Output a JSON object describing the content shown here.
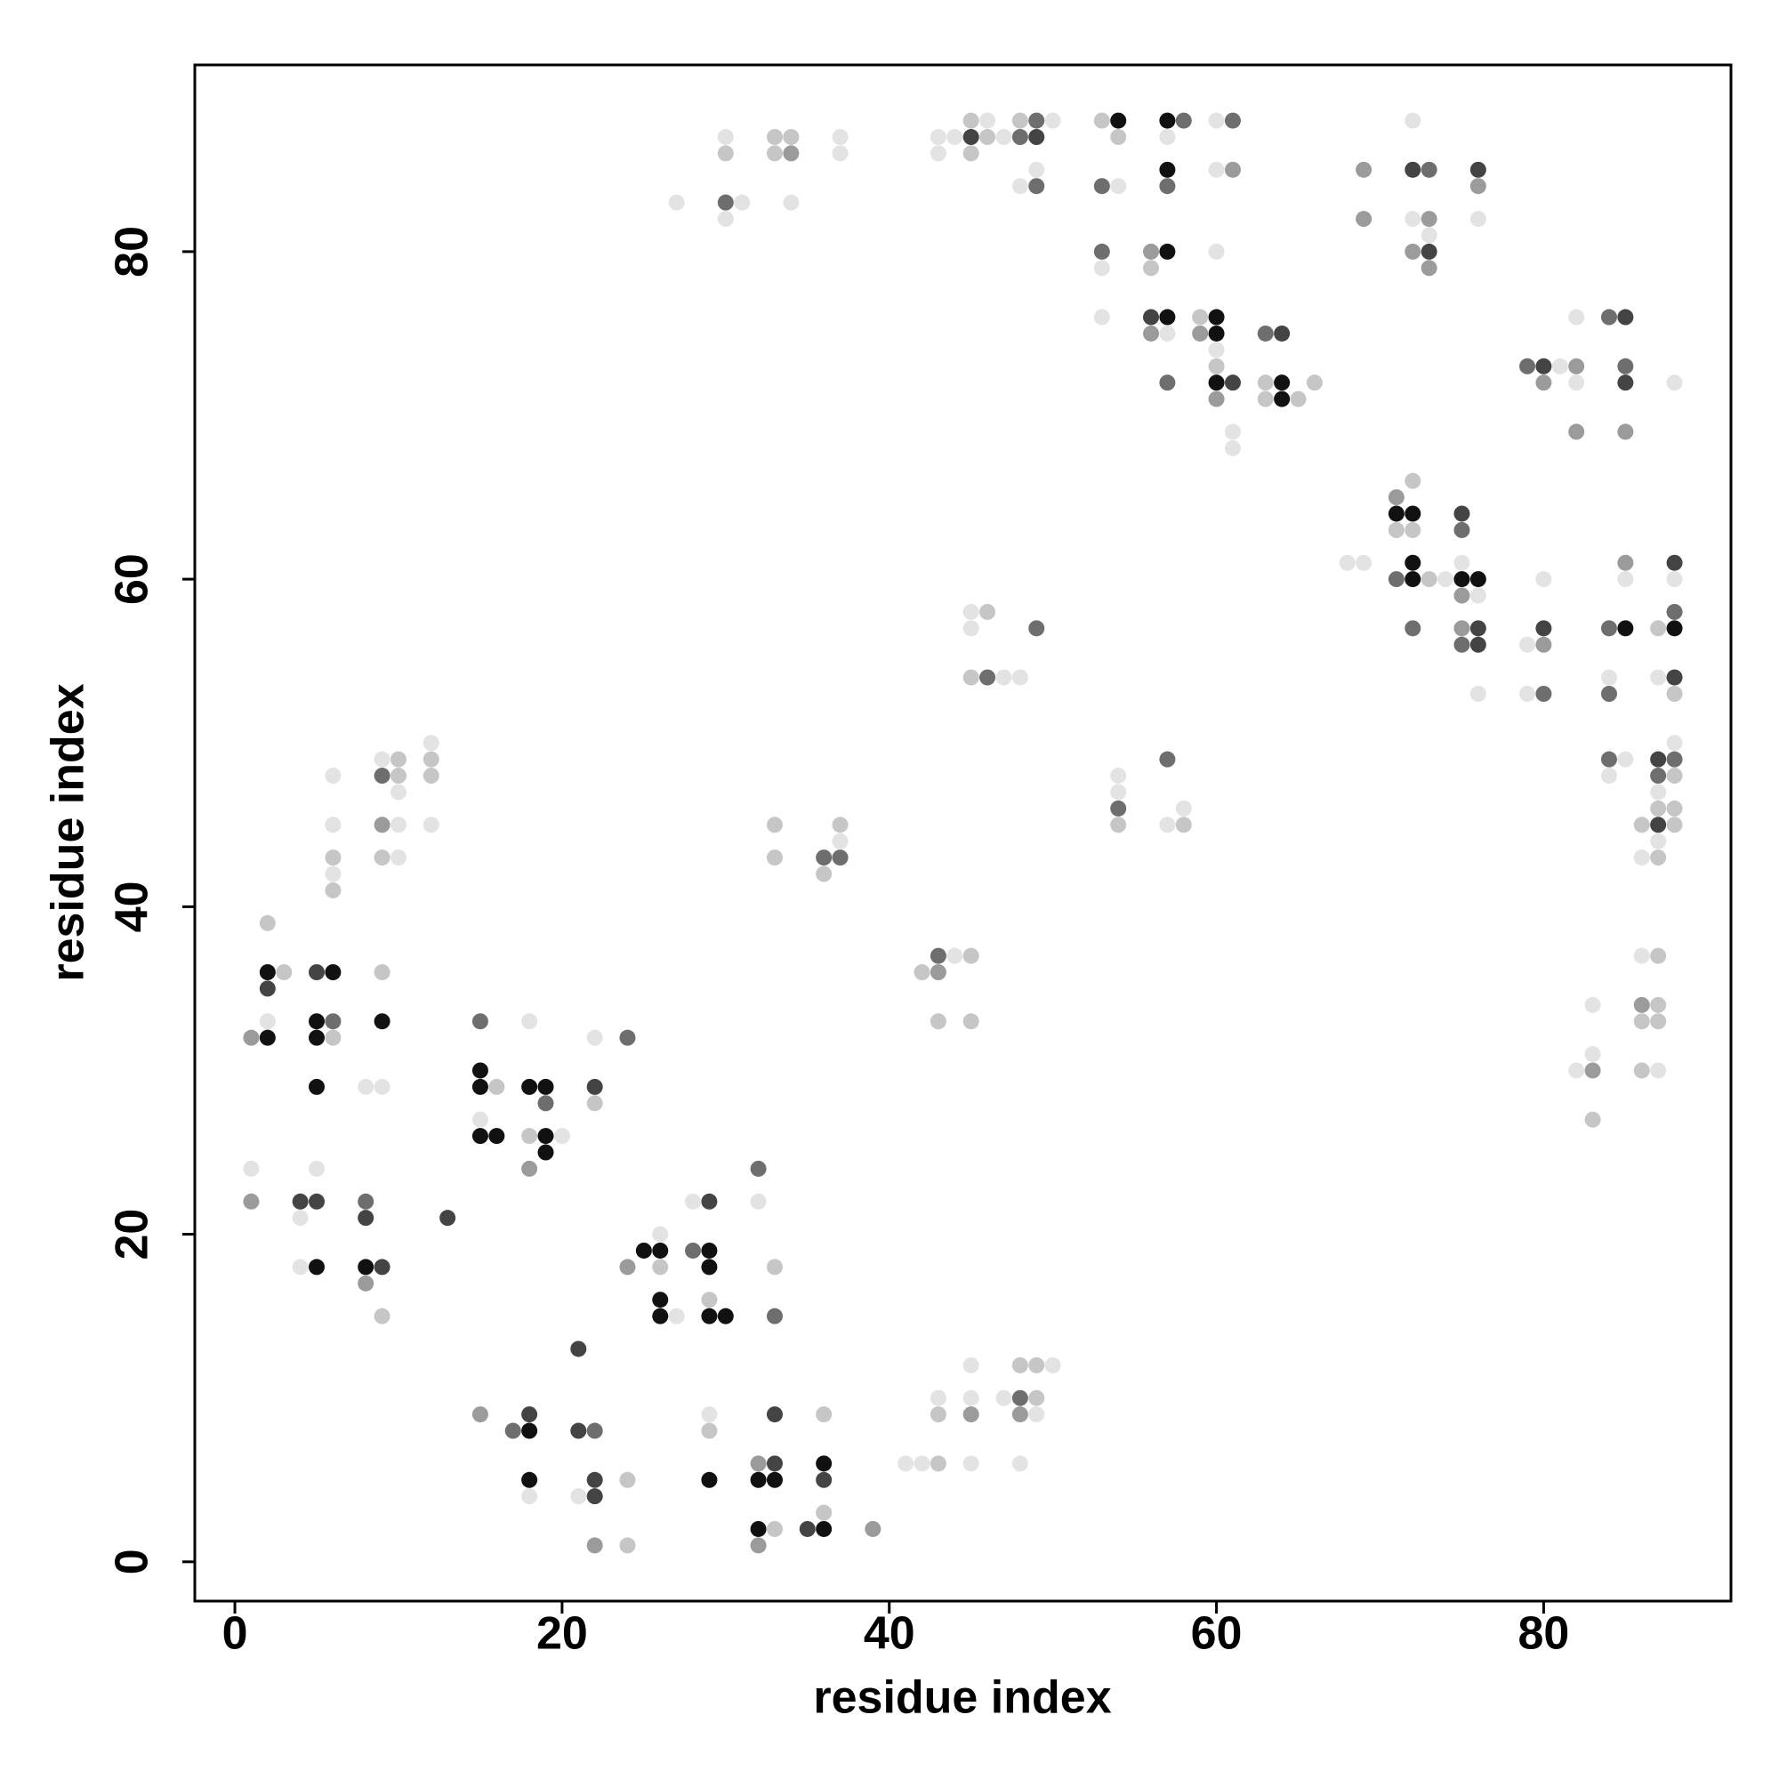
{
  "chart_data": {
    "type": "scatter",
    "xlabel": "residue index",
    "ylabel": "residue index",
    "xlim": [
      -2.45,
      91.45
    ],
    "ylim": [
      -2.4,
      91.4
    ],
    "xticks": [
      0,
      20,
      40,
      60,
      80
    ],
    "yticks": [
      0,
      20,
      40,
      60,
      80
    ],
    "grid": false,
    "x": [
      30,
      30,
      30,
      30,
      31,
      27,
      33,
      33,
      34,
      34,
      34,
      37,
      37,
      43,
      44,
      45,
      45,
      45,
      46,
      46,
      47,
      48,
      48,
      48,
      49,
      49,
      49,
      49,
      50,
      43,
      53,
      54,
      54,
      53,
      54,
      57,
      58,
      57,
      57,
      57,
      60,
      61,
      60,
      61,
      53,
      53,
      56,
      57,
      56,
      60,
      53,
      56,
      57,
      56,
      57,
      59,
      60,
      59,
      60,
      60,
      60,
      60,
      61,
      60,
      57,
      61,
      61,
      63,
      64,
      63,
      64,
      63,
      64,
      65,
      66,
      69,
      69,
      72,
      72,
      73,
      72,
      73,
      73,
      72,
      73,
      73,
      76,
      76,
      76,
      82,
      84,
      85,
      79,
      80,
      81,
      82,
      85,
      80,
      82,
      85,
      88,
      82,
      85,
      72,
      71,
      71,
      72,
      71,
      72,
      68,
      69,
      72,
      71,
      72,
      73,
      74,
      75,
      75,
      75,
      75,
      76,
      75,
      76,
      72,
      75,
      76,
      75,
      76,
      76,
      80,
      79,
      80,
      80,
      79,
      80,
      84,
      85,
      85,
      85,
      84,
      84,
      88,
      88,
      87,
      88,
      88,
      87,
      88,
      88,
      84,
      85,
      84,
      87,
      88,
      88,
      87,
      88,
      87,
      87,
      88,
      86,
      87,
      88,
      86,
      87,
      87,
      86,
      87,
      83,
      86,
      87,
      86,
      87,
      83,
      82,
      83,
      86,
      87,
      83,
      45,
      46,
      45,
      49,
      45,
      46,
      47,
      48,
      54,
      54,
      54,
      54,
      57,
      58,
      57,
      58,
      33,
      33,
      36,
      37,
      37,
      37,
      36,
      42,
      43,
      44,
      45,
      43,
      43,
      45,
      6,
      6,
      6,
      6,
      6,
      9,
      10,
      9,
      10,
      10,
      9,
      10,
      9,
      10,
      12,
      12,
      12,
      12,
      2,
      2,
      3,
      2,
      5,
      6,
      2,
      5,
      6,
      1,
      2,
      5,
      6,
      5,
      9,
      9,
      8,
      9,
      1,
      5,
      1,
      4,
      5,
      4,
      8,
      8,
      13,
      4,
      5,
      8,
      9,
      8,
      9,
      15,
      18,
      24,
      22,
      15,
      15,
      16,
      18,
      19,
      22,
      19,
      22,
      15,
      15,
      16,
      18,
      19,
      20,
      18,
      19,
      32,
      32,
      28,
      29,
      26,
      25,
      26,
      28,
      29,
      24,
      26,
      29,
      33,
      26,
      29,
      26,
      27,
      29,
      30,
      33,
      21,
      15,
      18,
      17,
      18,
      21,
      22,
      18,
      22,
      24,
      18,
      21,
      22,
      22,
      24,
      29,
      29,
      33,
      36,
      32,
      33,
      36,
      29,
      32,
      33,
      36,
      36,
      32,
      33,
      35,
      36,
      39,
      32,
      45,
      48,
      49,
      50,
      43,
      45,
      47,
      48,
      49,
      43,
      45,
      48,
      49,
      41,
      42,
      43,
      45,
      48
    ],
    "values": [
      87,
      86,
      83,
      82,
      83,
      83,
      87,
      86,
      87,
      86,
      83,
      87,
      86,
      87,
      87,
      88,
      87,
      86,
      88,
      87,
      87,
      88,
      87,
      84,
      88,
      87,
      85,
      84,
      88,
      86,
      88,
      88,
      87,
      84,
      84,
      88,
      88,
      87,
      85,
      84,
      88,
      88,
      85,
      85,
      80,
      79,
      80,
      80,
      79,
      80,
      76,
      76,
      76,
      75,
      75,
      76,
      76,
      75,
      75,
      74,
      73,
      72,
      72,
      71,
      72,
      69,
      68,
      75,
      75,
      72,
      72,
      71,
      71,
      71,
      72,
      85,
      82,
      88,
      85,
      85,
      82,
      82,
      81,
      80,
      80,
      79,
      85,
      84,
      82,
      76,
      76,
      76,
      73,
      73,
      73,
      73,
      73,
      72,
      72,
      72,
      72,
      69,
      69,
      66,
      65,
      64,
      64,
      63,
      63,
      61,
      61,
      61,
      60,
      60,
      60,
      60,
      61,
      64,
      63,
      60,
      60,
      59,
      59,
      57,
      57,
      57,
      56,
      56,
      53,
      60,
      56,
      57,
      56,
      53,
      53,
      57,
      57,
      61,
      60,
      54,
      53,
      61,
      60,
      57,
      58,
      57,
      54,
      54,
      53,
      49,
      49,
      48,
      49,
      49,
      50,
      48,
      48,
      47,
      46,
      46,
      45,
      45,
      45,
      43,
      43,
      44,
      37,
      37,
      34,
      34,
      34,
      33,
      33,
      31,
      30,
      30,
      30,
      30,
      27,
      58,
      58,
      57,
      57,
      54,
      54,
      54,
      54,
      48,
      47,
      46,
      45,
      49,
      46,
      45,
      45,
      45,
      43,
      43,
      43,
      45,
      44,
      42,
      36,
      37,
      37,
      37,
      36,
      33,
      33,
      48,
      45,
      43,
      42,
      41,
      49,
      49,
      48,
      48,
      47,
      45,
      45,
      43,
      43,
      50,
      49,
      48,
      45,
      39,
      36,
      36,
      35,
      36,
      36,
      33,
      33,
      33,
      32,
      32,
      32,
      32,
      29,
      36,
      33,
      29,
      29,
      24,
      24,
      22,
      22,
      22,
      21,
      22,
      21,
      21,
      18,
      18,
      18,
      18,
      17,
      15,
      33,
      33,
      32,
      32,
      30,
      29,
      29,
      29,
      29,
      29,
      28,
      28,
      27,
      26,
      26,
      26,
      26,
      26,
      24,
      25,
      24,
      22,
      22,
      22,
      20,
      19,
      19,
      19,
      19,
      18,
      18,
      18,
      18,
      16,
      16,
      15,
      15,
      15,
      15,
      15,
      13,
      9,
      9,
      8,
      8,
      8,
      8,
      5,
      5,
      5,
      4,
      4,
      4,
      1,
      1,
      9,
      8,
      9,
      9,
      6,
      6,
      6,
      5,
      5,
      5,
      5,
      3,
      2,
      2,
      2,
      2,
      2,
      1,
      12,
      12,
      12,
      12,
      10,
      10,
      10,
      10,
      10,
      9,
      9,
      9,
      9,
      6,
      6,
      6,
      6,
      6
    ],
    "colors": [
      "#e3e3e3",
      "#c6c6c6",
      "#6e6e6e",
      "#e3e3e3",
      "#e3e3e3",
      "#e3e3e3",
      "#c6c6c6",
      "#c6c6c6",
      "#c6c6c6",
      "#9b9b9b",
      "#e3e3e3",
      "#e3e3e3",
      "#e3e3e3",
      "#e3e3e3",
      "#e3e3e3",
      "#c6c6c6",
      "#444",
      "#c6c6c6",
      "#e3e3e3",
      "#c6c6c6",
      "#e3e3e3",
      "#c6c6c6",
      "#6e6e6e",
      "#e3e3e3",
      "#6e6e6e",
      "#444",
      "#e3e3e3",
      "#6e6e6e",
      "#e3e3e3",
      "#e3e3e3",
      "#c6c6c6",
      "#111",
      "#c6c6c6",
      "#6e6e6e",
      "#e3e3e3",
      "#111",
      "#6e6e6e",
      "#e3e3e3",
      "#111",
      "#6e6e6e",
      "#e3e3e3",
      "#6e6e6e",
      "#e3e3e3",
      "#9b9b9b",
      "#6e6e6e",
      "#e3e3e3",
      "#9b9b9b",
      "#111",
      "#c6c6c6",
      "#e3e3e3",
      "#e3e3e3",
      "#444",
      "#111",
      "#9b9b9b",
      "#e3e3e3",
      "#c6c6c6",
      "#111",
      "#9b9b9b",
      "#111",
      "#e3e3e3",
      "#c6c6c6",
      "#111",
      "#444",
      "#9b9b9b",
      "#6e6e6e",
      "#e3e3e3",
      "#e3e3e3",
      "#6e6e6e",
      "#444",
      "#c6c6c6",
      "#111",
      "#c6c6c6",
      "#111",
      "#c6c6c6",
      "#c6c6c6",
      "#9b9b9b",
      "#9b9b9b",
      "#e3e3e3",
      "#444",
      "#6e6e6e",
      "#e3e3e3",
      "#9b9b9b",
      "#e3e3e3",
      "#9b9b9b",
      "#444",
      "#9b9b9b",
      "#444",
      "#9b9b9b",
      "#e3e3e3",
      "#e3e3e3",
      "#6e6e6e",
      "#444",
      "#6e6e6e",
      "#444",
      "#e3e3e3",
      "#9b9b9b",
      "#6e6e6e",
      "#9b9b9b",
      "#e3e3e3",
      "#444",
      "#e3e3e3",
      "#9b9b9b",
      "#9b9b9b",
      "#c6c6c6",
      "#9b9b9b",
      "#111",
      "#111",
      "#c6c6c6",
      "#c6c6c6",
      "#e3e3e3",
      "#e3e3e3",
      "#111",
      "#6e6e6e",
      "#111",
      "#c6c6c6",
      "#e3e3e3",
      "#e3e3e3",
      "#444",
      "#6e6e6e",
      "#111",
      "#111",
      "#9b9b9b",
      "#e3e3e3",
      "#6e6e6e",
      "#9b9b9b",
      "#444",
      "#6e6e6e",
      "#444",
      "#e3e3e3",
      "#e3e3e3",
      "#e3e3e3",
      "#444",
      "#9b9b9b",
      "#e3e3e3",
      "#6e6e6e",
      "#6e6e6e",
      "#111",
      "#9b9b9b",
      "#e3e3e3",
      "#e3e3e3",
      "#6e6e6e",
      "#444",
      "#e3e3e3",
      "#c6c6c6",
      "#6e6e6e",
      "#111",
      "#e3e3e3",
      "#444",
      "#c6c6c6",
      "#6e6e6e",
      "#e3e3e3",
      "#e3e3e3",
      "#444",
      "#6e6e6e",
      "#e3e3e3",
      "#6e6e6e",
      "#c6c6c6",
      "#e3e3e3",
      "#c6c6c6",
      "#c6c6c6",
      "#c6c6c6",
      "#444",
      "#c6c6c6",
      "#e3e3e3",
      "#c6c6c6",
      "#e3e3e3",
      "#e3e3e3",
      "#c6c6c6",
      "#e3e3e3",
      "#9b9b9b",
      "#c6c6c6",
      "#c6c6c6",
      "#c6c6c6",
      "#e3e3e3",
      "#e3e3e3",
      "#9b9b9b",
      "#c6c6c6",
      "#e3e3e3",
      "#c6c6c6",
      "#e3e3e3",
      "#c6c6c6",
      "#e3e3e3",
      "#6e6e6e",
      "#c6c6c6",
      "#6e6e6e",
      "#e3e3e3",
      "#e3e3e3",
      "#e3e3e3",
      "#e3e3e3",
      "#6e6e6e",
      "#c6c6c6",
      "#6e6e6e",
      "#e3e3e3",
      "#e3e3e3",
      "#c6c6c6",
      "#c6c6c6",
      "#c6c6c6",
      "#6e6e6e",
      "#6e6e6e",
      "#c6c6c6",
      "#e3e3e3",
      "#c6c6c6",
      "#c6c6c6",
      "#6e6e6e",
      "#e3e3e3",
      "#c6c6c6",
      "#9b9b9b",
      "#c6c6c6",
      "#c6c6c6",
      "#e3e3e3",
      "#e3e3e3",
      "#c6c6c6",
      "#e3e3e3",
      "#c6c6c6",
      "#e3e3e3",
      "#c6c6c6",
      "#6e6e6e",
      "#c6c6c6",
      "#e3e3e3",
      "#9b9b9b",
      "#e3e3e3",
      "#c6c6c6",
      "#e3e3e3",
      "#e3e3e3",
      "#c6c6c6",
      "#c6c6c6",
      "#e3e3e3",
      "#c6c6c6",
      "#111",
      "#c6c6c6",
      "#444",
      "#444",
      "#111",
      "#e3e3e3",
      "#111",
      "#6e6e6e",
      "#9b9b9b",
      "#111",
      "#111",
      "#c6c6c6",
      "#111",
      "#c6c6c6",
      "#111",
      "#e3e3e3",
      "#e3e3e3",
      "#e3e3e3",
      "#e3e3e3",
      "#9b9b9b",
      "#444",
      "#444",
      "#e3e3e3",
      "#6e6e6e",
      "#444",
      "#444",
      "#e3e3e3",
      "#111",
      "#111",
      "#444",
      "#9b9b9b",
      "#c6c6c6",
      "#6e6e6e",
      "#e3e3e3",
      "#6e6e6e",
      "#e3e3e3",
      "#111",
      "#111",
      "#c6c6c6",
      "#111",
      "#111",
      "#444",
      "#6e6e6e",
      "#c6c6c6",
      "#e3e3e3",
      "#111",
      "#111",
      "#c6c6c6",
      "#111",
      "#e3e3e3",
      "#9b9b9b",
      "#111",
      "#6e6e6e",
      "#e3e3e3",
      "#e3e3e3",
      "#444",
      "#e3e3e3",
      "#111",
      "#111",
      "#6e6e6e",
      "#111",
      "#9b9b9b",
      "#c6c6c6",
      "#111",
      "#c6c6c6",
      "#111",
      "#c6c6c6",
      "#111",
      "#e3e3e3",
      "#111",
      "#111",
      "#6e6e6e",
      "#444",
      "#9b9b9b",
      "#444",
      "#6e6e6e",
      "#111",
      "#444",
      "#6e6e6e",
      "#111",
      "#444",
      "#c6c6c6",
      "#e3e3e3",
      "#e3e3e3",
      "#444",
      "#9b9b9b",
      "#c6c6c6",
      "#e3e3e3",
      "#c6c6c6",
      "#444",
      "#c6c6c6",
      "#9b9b9b",
      "#444",
      "#111",
      "#111",
      "#111",
      "#111",
      "#444",
      "#c6c6c6",
      "#111",
      "#c6c6c6",
      "#444",
      "#111",
      "#9b9b9b",
      "#9b9b9b",
      "#e3e3e3",
      "#c6c6c6",
      "#c6c6c6",
      "#e3e3e3",
      "#e3e3e3",
      "#e3e3e3",
      "#e3e3e3",
      "#6e6e6e",
      "#c6c6c6",
      "#c6c6c6",
      "#9b9b9b",
      "#9b9b9b",
      "#e3e3e3",
      "#e3e3e3",
      "#e3e3e3",
      "#c6c6c6",
      "#e3e3e3",
      "#e3e3e3"
    ]
  }
}
